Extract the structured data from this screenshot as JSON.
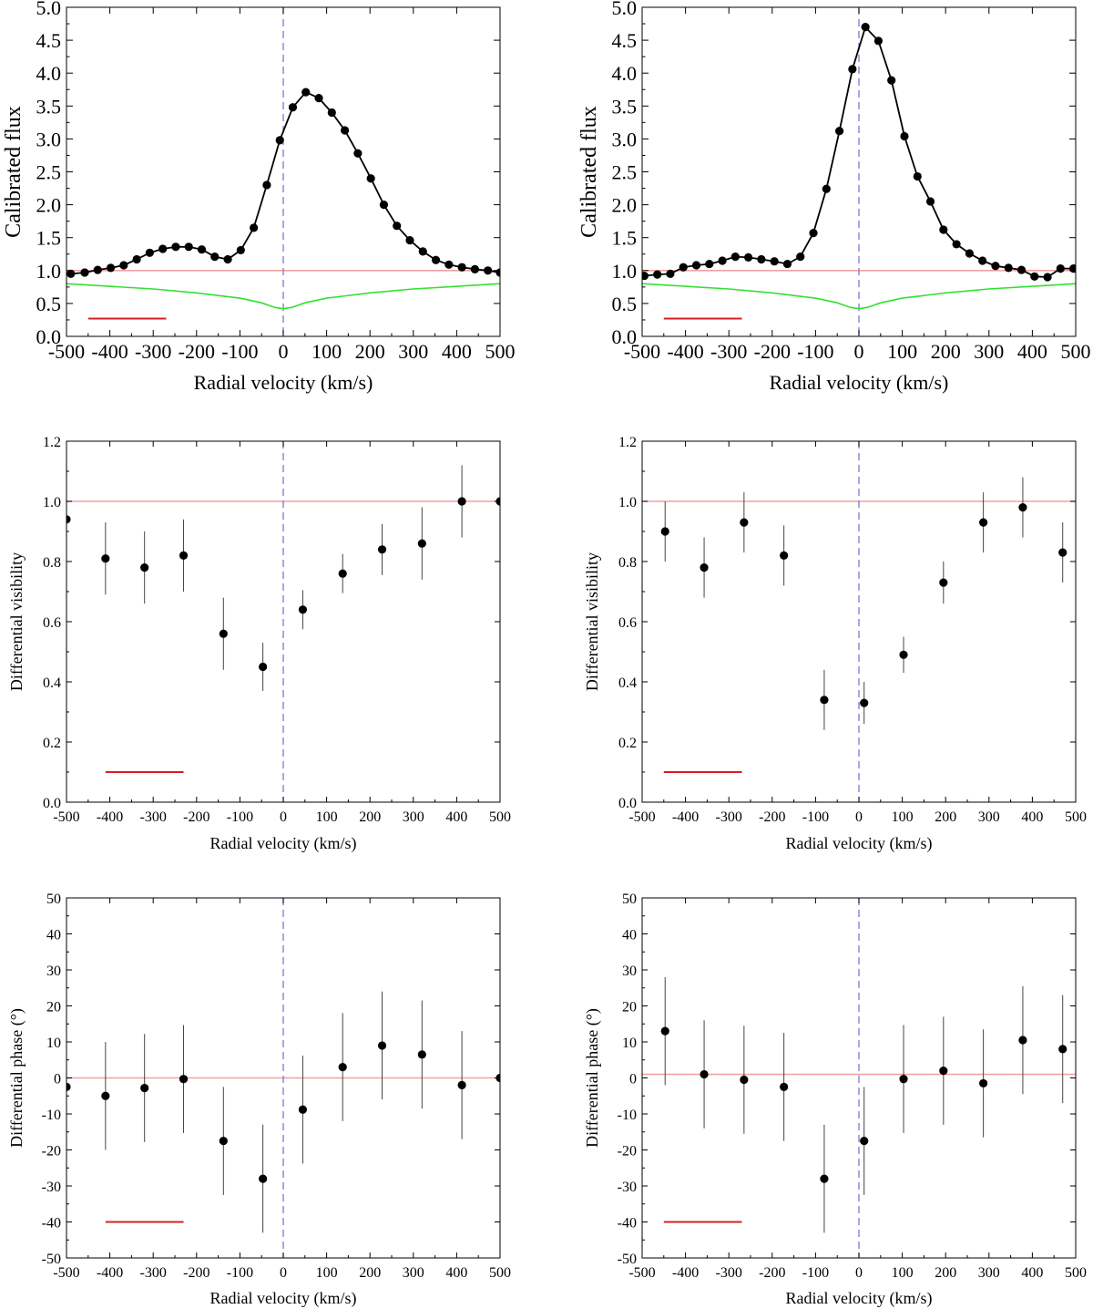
{
  "chart_data": [
    {
      "id": "flux-left",
      "type": "line",
      "xlabel": "Radial velocity (km/s)",
      "ylabel": "Calibrated flux",
      "xlim": [
        -500,
        500
      ],
      "ylim": [
        0,
        5
      ],
      "xticks": [
        -500,
        -400,
        -300,
        -200,
        -100,
        0,
        100,
        200,
        300,
        400,
        500
      ],
      "xtick_labels": [
        "-500",
        "-400",
        "-300",
        "-200",
        "-100",
        "0",
        "100",
        "200",
        "300",
        "400",
        "500"
      ],
      "yticks": [
        0,
        0.5,
        1,
        1.5,
        2,
        2.5,
        3,
        3.5,
        4,
        4.5,
        5
      ],
      "ytick_labels": [
        "0.0",
        "0.5",
        "1.0",
        "1.5",
        "2.0",
        "2.5",
        "3.0",
        "3.5",
        "4.0",
        "4.5",
        "5.0"
      ],
      "reference_y": 1.0,
      "reference_x": 0,
      "resolution_bar": {
        "x": [
          -450,
          -270
        ],
        "y": 0.27
      },
      "series": [
        {
          "kind": "points-line",
          "x": [
            -490,
            -458,
            -428,
            -398,
            -368,
            -338,
            -308,
            -278,
            -248,
            -218,
            -188,
            -158,
            -128,
            -98,
            -68,
            -38,
            -8,
            22,
            52,
            82,
            112,
            142,
            172,
            202,
            232,
            262,
            292,
            322,
            352,
            382,
            412,
            442,
            472,
            500
          ],
          "y": [
            0.95,
            0.97,
            1.01,
            1.04,
            1.08,
            1.17,
            1.27,
            1.33,
            1.36,
            1.36,
            1.32,
            1.21,
            1.17,
            1.31,
            1.65,
            2.3,
            2.98,
            3.48,
            3.71,
            3.62,
            3.4,
            3.13,
            2.78,
            2.4,
            2.0,
            1.68,
            1.46,
            1.29,
            1.16,
            1.09,
            1.05,
            1.02,
            1.0,
            0.97
          ]
        },
        {
          "kind": "absorption-profile",
          "x": [
            -500,
            -300,
            -200,
            -100,
            -50,
            -20,
            0,
            20,
            50,
            100,
            200,
            300,
            500
          ],
          "y": [
            0.8,
            0.72,
            0.66,
            0.58,
            0.51,
            0.44,
            0.42,
            0.44,
            0.51,
            0.58,
            0.66,
            0.72,
            0.8
          ]
        }
      ]
    },
    {
      "id": "flux-right",
      "type": "line",
      "xlabel": "Radial velocity (km/s)",
      "ylabel": "Calibrated flux",
      "xlim": [
        -500,
        500
      ],
      "ylim": [
        0,
        5
      ],
      "xticks": [
        -500,
        -400,
        -300,
        -200,
        -100,
        0,
        100,
        200,
        300,
        400,
        500
      ],
      "xtick_labels": [
        "-500",
        "-400",
        "-300",
        "-200",
        "-100",
        "0",
        "100",
        "200",
        "300",
        "400",
        "500"
      ],
      "yticks": [
        0,
        0.5,
        1,
        1.5,
        2,
        2.5,
        3,
        3.5,
        4,
        4.5,
        5
      ],
      "ytick_labels": [
        "0.0",
        "0.5",
        "1.0",
        "1.5",
        "2.0",
        "2.5",
        "3.0",
        "3.5",
        "4.0",
        "4.5",
        "5.0"
      ],
      "reference_y": 1.0,
      "reference_x": 0,
      "resolution_bar": {
        "x": [
          -450,
          -270
        ],
        "y": 0.27
      },
      "series": [
        {
          "kind": "points-line",
          "x": [
            -495,
            -465,
            -435,
            -405,
            -375,
            -345,
            -315,
            -285,
            -255,
            -225,
            -195,
            -165,
            -135,
            -105,
            -75,
            -45,
            -15,
            15,
            45,
            75,
            105,
            135,
            165,
            195,
            225,
            255,
            285,
            315,
            345,
            375,
            405,
            435,
            465,
            495
          ],
          "y": [
            0.92,
            0.94,
            0.95,
            1.05,
            1.08,
            1.1,
            1.15,
            1.21,
            1.2,
            1.17,
            1.14,
            1.1,
            1.21,
            1.57,
            2.24,
            3.12,
            4.06,
            4.7,
            4.49,
            3.89,
            3.04,
            2.43,
            2.05,
            1.62,
            1.4,
            1.26,
            1.15,
            1.07,
            1.04,
            1.01,
            0.91,
            0.9,
            1.03,
            1.03
          ]
        },
        {
          "kind": "absorption-profile",
          "x": [
            -500,
            -300,
            -200,
            -100,
            -50,
            -20,
            0,
            20,
            50,
            100,
            200,
            300,
            500
          ],
          "y": [
            0.8,
            0.72,
            0.66,
            0.58,
            0.51,
            0.44,
            0.42,
            0.44,
            0.51,
            0.58,
            0.66,
            0.72,
            0.8
          ]
        }
      ]
    },
    {
      "id": "vis-left",
      "type": "scatter",
      "xlabel": "Radial velocity (km/s)",
      "ylabel": "Differential visibility",
      "xlim": [
        -500,
        500
      ],
      "ylim": [
        0,
        1.2
      ],
      "xticks": [
        -500,
        -400,
        -300,
        -200,
        -100,
        0,
        100,
        200,
        300,
        400,
        500
      ],
      "xtick_labels": [
        "-500",
        "-400",
        "-300",
        "-200",
        "-100",
        "0",
        "100",
        "200",
        "300",
        "400",
        "500"
      ],
      "yticks": [
        0,
        0.2,
        0.4,
        0.6,
        0.8,
        1,
        1.2
      ],
      "ytick_labels": [
        "0.0",
        "0.2",
        "0.4",
        "0.6",
        "0.8",
        "1.0",
        "1.2"
      ],
      "minor_yticks": [
        0.1,
        0.3,
        0.5,
        0.7,
        0.9,
        1.1
      ],
      "reference_y": 1.0,
      "reference_x": 0,
      "resolution_bar": {
        "x": [
          -410,
          -230
        ],
        "y": 0.1
      },
      "series": [
        {
          "kind": "points-errorbars",
          "x": [
            -500,
            -410,
            -320,
            -230,
            -138,
            -47,
            45,
            137,
            228,
            320,
            412,
            500
          ],
          "y": [
            0.94,
            0.81,
            0.78,
            0.82,
            0.56,
            0.45,
            0.64,
            0.76,
            0.84,
            0.86,
            1.0,
            1.0
          ],
          "err": [
            0.06,
            0.12,
            0.12,
            0.12,
            0.12,
            0.08,
            0.065,
            0.065,
            0.085,
            0.12,
            0.12,
            0.0
          ]
        }
      ]
    },
    {
      "id": "vis-right",
      "type": "scatter",
      "xlabel": "Radial velocity (km/s)",
      "ylabel": "Differential visibility",
      "xlim": [
        -500,
        500
      ],
      "ylim": [
        0,
        1.2
      ],
      "xticks": [
        -500,
        -400,
        -300,
        -200,
        -100,
        0,
        100,
        200,
        300,
        400,
        500
      ],
      "xtick_labels": [
        "-500",
        "-400",
        "-300",
        "-200",
        "-100",
        "0",
        "100",
        "200",
        "300",
        "400",
        "500"
      ],
      "yticks": [
        0,
        0.2,
        0.4,
        0.6,
        0.8,
        1,
        1.2
      ],
      "ytick_labels": [
        "0.0",
        "0.2",
        "0.4",
        "0.6",
        "0.8",
        "1.0",
        "1.2"
      ],
      "minor_yticks": [
        0.1,
        0.3,
        0.5,
        0.7,
        0.9,
        1.1
      ],
      "reference_y": 1.0,
      "reference_x": 0,
      "resolution_bar": {
        "x": [
          -450,
          -270
        ],
        "y": 0.1
      },
      "series": [
        {
          "kind": "points-errorbars",
          "x": [
            -447,
            -357,
            -265,
            -173,
            -80,
            12,
            103,
            195,
            287,
            378,
            470
          ],
          "y": [
            0.9,
            0.78,
            0.93,
            0.82,
            0.34,
            0.33,
            0.49,
            0.73,
            0.93,
            0.98,
            0.83
          ],
          "err": [
            0.1,
            0.1,
            0.1,
            0.1,
            0.1,
            0.07,
            0.06,
            0.07,
            0.1,
            0.1,
            0.1
          ]
        }
      ]
    },
    {
      "id": "phase-left",
      "type": "scatter",
      "xlabel": "Radial velocity (km/s)",
      "ylabel": "Differential phase (°)",
      "xlim": [
        -500,
        500
      ],
      "ylim": [
        -50,
        50
      ],
      "xticks": [
        -500,
        -400,
        -300,
        -200,
        -100,
        0,
        100,
        200,
        300,
        400,
        500
      ],
      "xtick_labels": [
        "-500",
        "-400",
        "-300",
        "-200",
        "-100",
        "0",
        "100",
        "200",
        "300",
        "400",
        "500"
      ],
      "yticks": [
        -50,
        -40,
        -30,
        -20,
        -10,
        0,
        10,
        20,
        30,
        40,
        50
      ],
      "ytick_labels": [
        "-50",
        "-40",
        "-30",
        "-20",
        "-10",
        "0",
        "10",
        "20",
        "30",
        "40",
        "50"
      ],
      "reference_y": 0,
      "reference_x": 0,
      "resolution_bar": {
        "x": [
          -410,
          -230
        ],
        "y": -40
      },
      "series": [
        {
          "kind": "points-errorbars",
          "x": [
            -500,
            -410,
            -320,
            -230,
            -138,
            -47,
            45,
            137,
            228,
            320,
            412,
            500
          ],
          "y": [
            -2.5,
            -5,
            -2.8,
            -0.3,
            -17.5,
            -28,
            -8.8,
            3,
            9,
            6.5,
            -2,
            0
          ],
          "err": [
            0,
            15,
            15,
            15,
            15,
            15,
            15,
            15,
            15,
            15,
            15,
            0
          ]
        }
      ]
    },
    {
      "id": "phase-right",
      "type": "scatter",
      "xlabel": "Radial velocity (km/s)",
      "ylabel": "Differential phase (°)",
      "xlim": [
        -500,
        500
      ],
      "ylim": [
        -50,
        50
      ],
      "xticks": [
        -500,
        -400,
        -300,
        -200,
        -100,
        0,
        100,
        200,
        300,
        400,
        500
      ],
      "xtick_labels": [
        "-500",
        "-400",
        "-300",
        "-200",
        "-100",
        "0",
        "100",
        "200",
        "300",
        "400",
        "500"
      ],
      "yticks": [
        -50,
        -40,
        -30,
        -20,
        -10,
        0,
        10,
        20,
        30,
        40,
        50
      ],
      "ytick_labels": [
        "-50",
        "-40",
        "-30",
        "-20",
        "-10",
        "0",
        "10",
        "20",
        "30",
        "40",
        "50"
      ],
      "reference_y": 1,
      "reference_x": 0,
      "resolution_bar": {
        "x": [
          -450,
          -270
        ],
        "y": -40
      },
      "series": [
        {
          "kind": "points-errorbars",
          "x": [
            -447,
            -357,
            -265,
            -173,
            -80,
            12,
            103,
            195,
            287,
            378,
            470
          ],
          "y": [
            13,
            1,
            -0.5,
            -2.5,
            -28,
            -17.5,
            -0.3,
            2,
            -1.5,
            10.5,
            8
          ],
          "err": [
            15,
            15,
            15,
            15,
            15,
            15,
            15,
            15,
            15,
            15,
            15
          ]
        }
      ]
    }
  ],
  "colors": {
    "axis": "#000000",
    "data": "#000000",
    "reference_line": "#f2a2a2",
    "zero_line": "#7a7ad6",
    "absorption": "#33e033",
    "resolution_bar": "#d42020"
  }
}
